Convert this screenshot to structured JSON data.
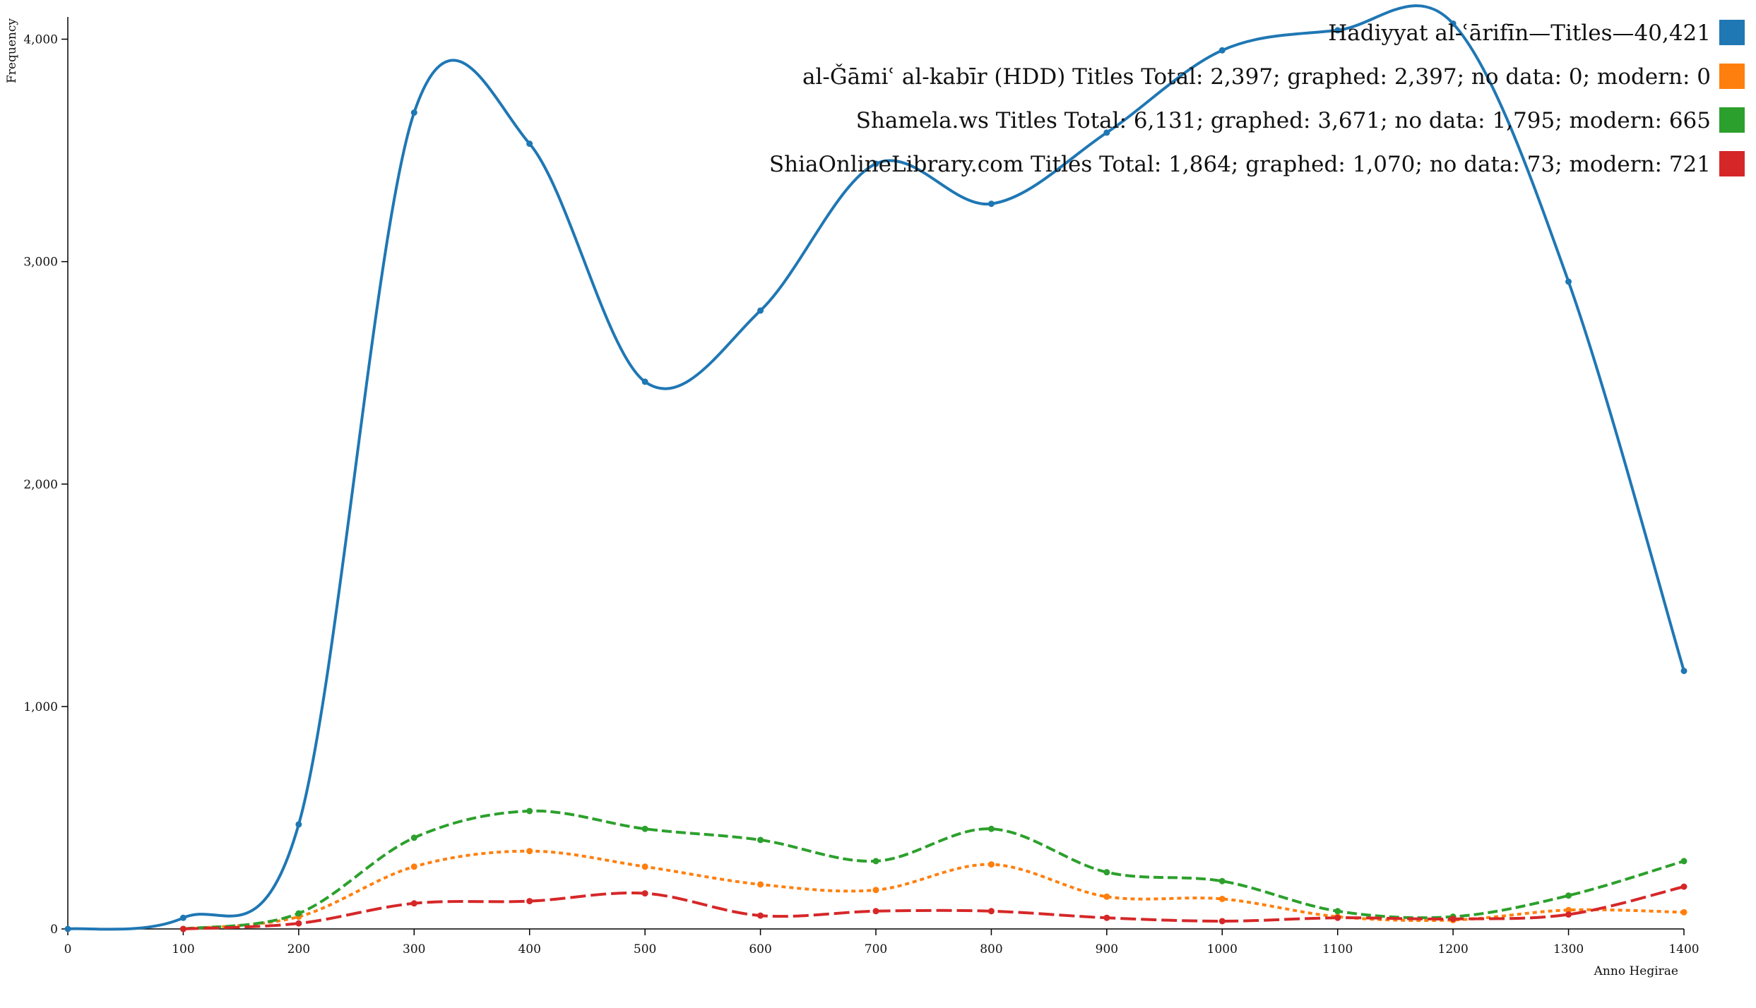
{
  "chart_data": {
    "type": "line",
    "title": "",
    "xlabel": "Anno Hegirae",
    "ylabel": "Frequency",
    "xlim": [
      0,
      1400
    ],
    "ylim": [
      0,
      4100
    ],
    "x_ticks": [
      0,
      100,
      200,
      300,
      400,
      500,
      600,
      700,
      800,
      900,
      1000,
      1100,
      1200,
      1300,
      1400
    ],
    "y_ticks": [
      0,
      1000,
      2000,
      3000,
      4000
    ],
    "grid": false,
    "legend_position": "top-right",
    "series": [
      {
        "name": "Hadiyyat al-ʿārifīn—Titles—40,421",
        "color": "#1f77b4",
        "dash": "solid",
        "x": [
          0,
          100,
          200,
          300,
          400,
          500,
          600,
          700,
          800,
          900,
          1000,
          1100,
          1200,
          1300,
          1400
        ],
        "values": [
          0,
          50,
          470,
          3670,
          3530,
          2460,
          2780,
          3440,
          3260,
          3580,
          3950,
          4040,
          4070,
          2910,
          1160
        ]
      },
      {
        "name": "al-Ǧāmiʿ al-kabīr (HDD) Titles Total: 2,397; graphed: 2,397; no data: 0; modern: 0",
        "color": "#ff7f0e",
        "dash": "dotted",
        "x": [
          100,
          200,
          300,
          400,
          500,
          600,
          700,
          800,
          900,
          1000,
          1100,
          1200,
          1300,
          1400
        ],
        "values": [
          0,
          55,
          280,
          350,
          280,
          200,
          175,
          290,
          145,
          135,
          55,
          40,
          85,
          75
        ]
      },
      {
        "name": "Shamela.ws Titles Total: 6,131; graphed: 3,671; no data: 1,795; modern: 665",
        "color": "#2ca02c",
        "dash": "dashed",
        "x": [
          100,
          200,
          300,
          400,
          500,
          600,
          700,
          800,
          900,
          1000,
          1100,
          1200,
          1300,
          1400
        ],
        "values": [
          0,
          70,
          410,
          530,
          450,
          400,
          305,
          450,
          255,
          215,
          80,
          55,
          150,
          305
        ]
      },
      {
        "name": "ShiaOnlineLibrary.com Titles Total: 1,864; graphed: 1,070; no data: 73; modern: 721",
        "color": "#d62728",
        "dash": "longdash",
        "x": [
          100,
          200,
          300,
          400,
          500,
          600,
          700,
          800,
          900,
          1000,
          1100,
          1200,
          1300,
          1400
        ],
        "values": [
          0,
          25,
          115,
          125,
          160,
          60,
          80,
          80,
          50,
          35,
          50,
          45,
          65,
          190
        ]
      }
    ]
  },
  "tick_labels": {
    "x": [
      "0",
      "100",
      "200",
      "300",
      "400",
      "500",
      "600",
      "700",
      "800",
      "900",
      "1000",
      "1100",
      "1200",
      "1300",
      "1400"
    ],
    "y": [
      "0",
      "1,000",
      "2,000",
      "3,000",
      "4,000"
    ]
  }
}
